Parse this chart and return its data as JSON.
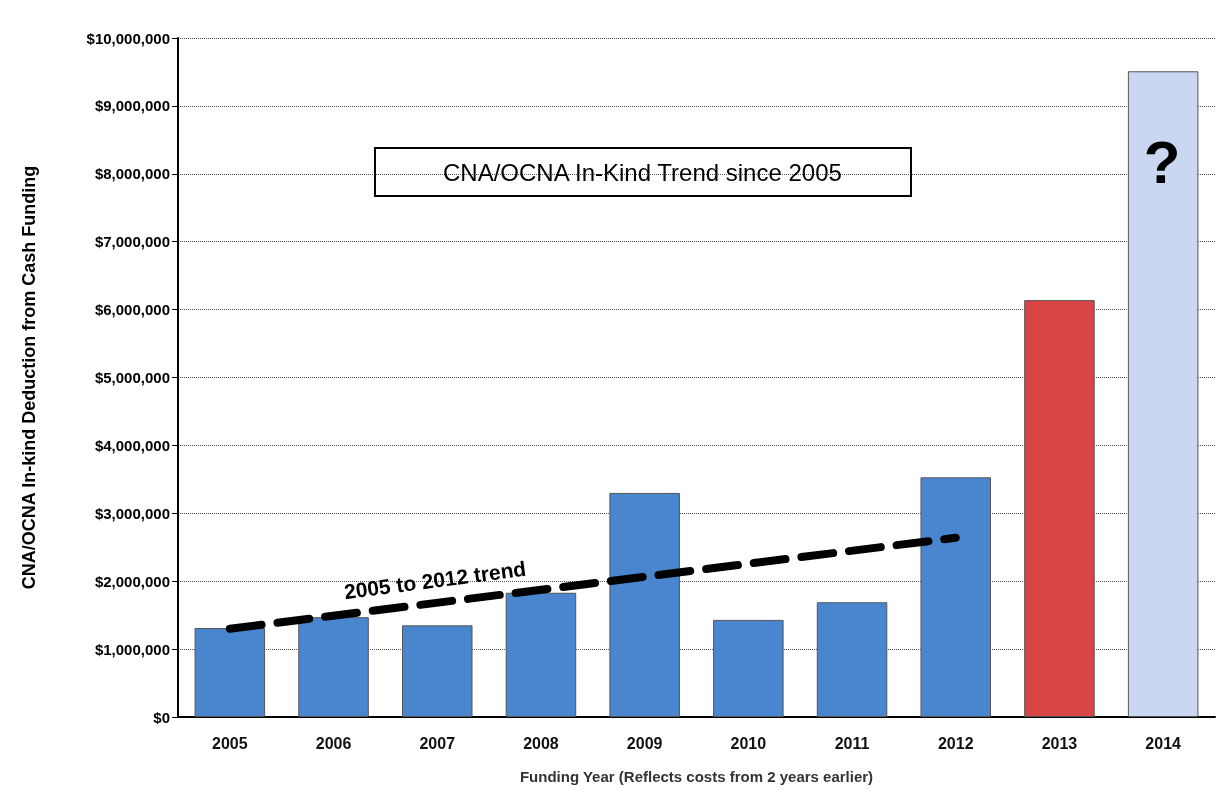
{
  "chart_data": {
    "type": "bar",
    "title": "CNA/OCNA In-Kind Trend since 2005",
    "xlabel": "Funding Year (Reflects costs from 2 years earlier)",
    "ylabel": "CNA/OCNA In-kind Deduction from Cash Funding",
    "categories": [
      "2005",
      "2006",
      "2007",
      "2008",
      "2009",
      "2010",
      "2011",
      "2012",
      "2013",
      "2014"
    ],
    "series": [
      {
        "colors": [
          "#4a86d0",
          "#4a86d0",
          "#4a86d0",
          "#4a86d0",
          "#4a86d0",
          "#4a86d0",
          "#4a86d0",
          "#4a86d0",
          "#d94545",
          "#c9d8f0"
        ],
        "values": [
          1310000,
          1470000,
          1350000,
          1830000,
          3300000,
          1430000,
          1690000,
          3530000,
          6140000,
          9510000
        ]
      },
      {
        "type": "line",
        "color": "#000000",
        "line_style": "dashed",
        "values": [
          1300000,
          null,
          null,
          null,
          null,
          null,
          null,
          2640000,
          null,
          null
        ]
      }
    ],
    "ylim": [
      0,
      10000000
    ],
    "yticks": [
      {
        "value": 0,
        "label": "$0"
      },
      {
        "value": 1000000,
        "label": "$1,000,000"
      },
      {
        "value": 2000000,
        "label": "$2,000,000"
      },
      {
        "value": 3000000,
        "label": "$3,000,000"
      },
      {
        "value": 4000000,
        "label": "$4,000,000"
      },
      {
        "value": 5000000,
        "label": "$5,000,000"
      },
      {
        "value": 6000000,
        "label": "$6,000,000"
      },
      {
        "value": 7000000,
        "label": "$7,000,000"
      },
      {
        "value": 8000000,
        "label": "$8,000,000"
      },
      {
        "value": 9000000,
        "label": "$9,000,000"
      },
      {
        "value": 10000000,
        "label": "$10,000,000"
      }
    ],
    "grid": "y",
    "annotations": [
      "2005 to 2012 trend",
      "?"
    ]
  }
}
